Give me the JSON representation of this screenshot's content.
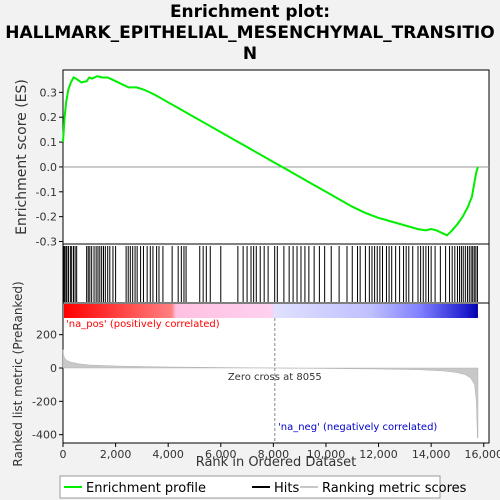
{
  "title_lines": [
    "Enrichment plot:",
    "HALLMARK_EPITHELIAL_MESENCHYMAL_TRANSITIO",
    "N"
  ],
  "colors": {
    "es_line": "#00ee00",
    "hits": "#000000",
    "metric_fill": "#c8c8c8",
    "pos_label": "#ff0000",
    "neg_label": "#0000cc",
    "zero_line": "#888888"
  },
  "chart_data": {
    "type": "line",
    "title": "Enrichment plot: HALLMARK_EPITHELIAL_MESENCHYMAL_TRANSITION",
    "xlabel": "Rank in Ordered Dataset",
    "xlim": [
      0,
      16200
    ],
    "x_ticks": [
      "0",
      "2,000",
      "4,000",
      "6,000",
      "8,000",
      "10,000",
      "12,000",
      "14,000",
      "16,000"
    ],
    "panels": {
      "enrichment": {
        "ylabel": "Enrichment score (ES)",
        "ylim": [
          -0.31,
          0.39
        ],
        "y_ticks": [
          "0.3",
          "0.2",
          "0.1",
          "0.0",
          "-0.1",
          "-0.2",
          "-0.3"
        ],
        "series": [
          {
            "name": "Enrichment profile",
            "x": [
              0,
              60,
              120,
              200,
              300,
              400,
              500,
              700,
              900,
              1000,
              1100,
              1300,
              1500,
              1700,
              1900,
              2200,
              2500,
              2800,
              3100,
              3500,
              4000,
              4500,
              5000,
              5500,
              6000,
              6500,
              7000,
              7500,
              8000,
              8500,
              9000,
              9500,
              10000,
              10500,
              11000,
              11500,
              12000,
              12500,
              13000,
              13500,
              13800,
              14000,
              14200,
              14400,
              14600,
              14800,
              15000,
              15200,
              15400,
              15550,
              15650,
              15720,
              15780
            ],
            "y": [
              0.1,
              0.2,
              0.26,
              0.31,
              0.34,
              0.36,
              0.355,
              0.34,
              0.345,
              0.36,
              0.355,
              0.365,
              0.36,
              0.36,
              0.35,
              0.335,
              0.32,
              0.32,
              0.31,
              0.29,
              0.26,
              0.23,
              0.2,
              0.17,
              0.14,
              0.11,
              0.08,
              0.05,
              0.02,
              -0.01,
              -0.04,
              -0.07,
              -0.1,
              -0.13,
              -0.16,
              -0.185,
              -0.205,
              -0.22,
              -0.235,
              -0.25,
              -0.255,
              -0.25,
              -0.255,
              -0.265,
              -0.275,
              -0.255,
              -0.23,
              -0.2,
              -0.16,
              -0.12,
              -0.06,
              -0.02,
              0.0
            ]
          }
        ]
      },
      "hits": {
        "label": "Hits",
        "positions": [
          20,
          60,
          110,
          150,
          210,
          280,
          330,
          400,
          460,
          520,
          900,
          960,
          1020,
          1090,
          1180,
          1260,
          1330,
          1400,
          1470,
          1540,
          1610,
          1700,
          1780,
          1900,
          2000,
          2400,
          2480,
          2560,
          2650,
          2740,
          2820,
          2950,
          3060,
          3200,
          3320,
          3420,
          3560,
          3650,
          3800,
          4150,
          4380,
          4500,
          4600,
          4680,
          5200,
          5330,
          5450,
          5600,
          6000,
          6650,
          6850,
          7000,
          7150,
          7250,
          7350,
          7500,
          7650,
          7800,
          8050,
          8150,
          8400,
          8600,
          8750,
          8900,
          9050,
          9200,
          9350,
          9550,
          9750,
          9950,
          10200,
          10500,
          10800,
          11000,
          11200,
          11300,
          11500,
          11650,
          11750,
          11850,
          11950,
          12050,
          12150,
          12300,
          12400,
          12500,
          12650,
          12800,
          12950,
          13050,
          13150,
          13300,
          13500,
          13600,
          13700,
          13800,
          13900,
          14000,
          14150,
          14350,
          14550,
          14700,
          14800,
          14900,
          15000,
          15080,
          15150,
          15220,
          15300,
          15380,
          15450,
          15520,
          15580,
          15640,
          15700,
          15760
        ]
      },
      "metric": {
        "ylabel": "Ranked list metric (PreRanked)",
        "ylim": [
          -450,
          300
        ],
        "y_ticks": [
          "200",
          "0",
          "-200",
          "-400"
        ],
        "x": [
          0,
          20,
          60,
          150,
          300,
          600,
          1000,
          2000,
          4000,
          6000,
          8055,
          10000,
          12000,
          13500,
          14500,
          15000,
          15300,
          15500,
          15650,
          15720,
          15760,
          15780
        ],
        "y": [
          110,
          80,
          60,
          45,
          35,
          25,
          18,
          12,
          6,
          3,
          0,
          -3,
          -6,
          -10,
          -18,
          -28,
          -40,
          -60,
          -100,
          -200,
          -420,
          -420
        ],
        "zero_cross": 8055,
        "zero_cross_label": "Zero cross at 8055",
        "pos_label": "'na_pos' (positively correlated)",
        "neg_label": "'na_neg' (negatively correlated)"
      }
    },
    "legend": {
      "placement": "bottom",
      "entries": [
        "Enrichment profile",
        "Hits",
        "Ranking metric scores"
      ]
    }
  }
}
